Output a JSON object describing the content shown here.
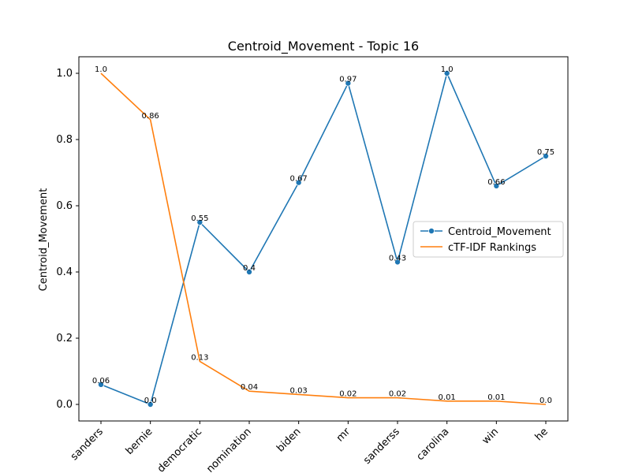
{
  "chart_data": {
    "type": "line",
    "title": "Centroid_Movement - Topic 16",
    "xlabel": "",
    "ylabel": "Centroid_Movement",
    "categories": [
      "sanders",
      "bernie",
      "democratic",
      "nomination",
      "biden",
      "mr",
      "sanderss",
      "carolina",
      "win",
      "he"
    ],
    "ylim": [
      -0.05,
      1.05
    ],
    "yticks": [
      0.0,
      0.2,
      0.4,
      0.6,
      0.8,
      1.0
    ],
    "ytick_labels": [
      "0.0",
      "0.2",
      "0.4",
      "0.6",
      "0.8",
      "1.0"
    ],
    "grid": false,
    "legend_position": "right",
    "series": [
      {
        "name": "Centroid_Movement",
        "color": "#1f77b4",
        "marker": "circle",
        "values": [
          0.06,
          0.0,
          0.55,
          0.4,
          0.67,
          0.97,
          0.43,
          1.0,
          0.66,
          0.75
        ],
        "labels": [
          "0.06",
          "0.0",
          "0.55",
          "0.4",
          "0.67",
          "0.97",
          "0.43",
          "1.0",
          "0.66",
          "0.75"
        ]
      },
      {
        "name": "cTF-IDF Rankings",
        "color": "#ff7f0e",
        "marker": "none",
        "values": [
          1.0,
          0.86,
          0.13,
          0.04,
          0.03,
          0.02,
          0.02,
          0.01,
          0.01,
          0.0
        ],
        "labels": [
          "1.0",
          "0.86",
          "0.13",
          "0.04",
          "0.03",
          "0.02",
          "0.02",
          "0.01",
          "0.01",
          "0.0"
        ]
      }
    ]
  }
}
